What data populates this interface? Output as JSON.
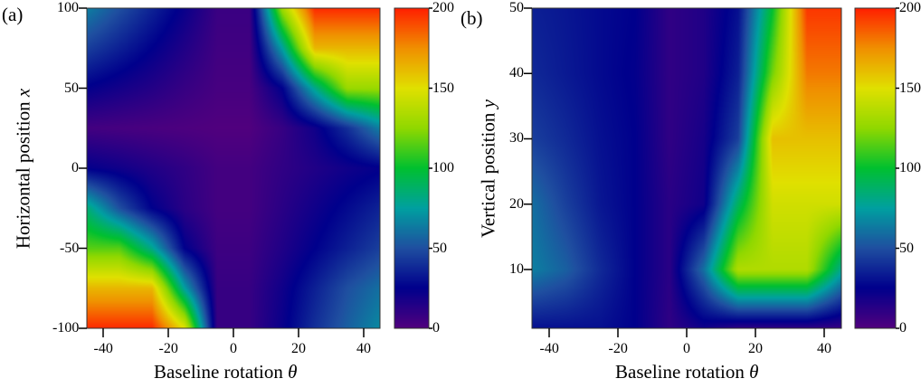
{
  "chart_data": [
    {
      "type": "heatmap",
      "panel_label": "(a)",
      "xlabel": "Baseline rotation",
      "xlabel_symbol": "θ",
      "ylabel": "Horizontal position",
      "ylabel_symbol": "x",
      "xlim": [
        -45,
        45
      ],
      "ylim": [
        -100,
        100
      ],
      "xticks": [
        -40,
        -20,
        0,
        20,
        40
      ],
      "yticks": [
        100,
        50,
        0,
        -50,
        -100
      ],
      "colorbar": {
        "range": [
          0,
          200
        ],
        "ticks": [
          200,
          150,
          100,
          50,
          0
        ]
      },
      "grid_x": [
        -45,
        -35,
        -25,
        -15,
        -5,
        5,
        15,
        25,
        35,
        45
      ],
      "grid_y": [
        100,
        75,
        50,
        25,
        0,
        -25,
        -50,
        -75,
        -100
      ],
      "z": [
        [
          65,
          50,
          36,
          22,
          7,
          7,
          130,
          198,
          198,
          198
        ],
        [
          45,
          35,
          25,
          15,
          5,
          5,
          75,
          163,
          163,
          163
        ],
        [
          24,
          19,
          14,
          8,
          3,
          3,
          25,
          80,
          128,
          128
        ],
        [
          4,
          3,
          2,
          1,
          0,
          0,
          8,
          20,
          40,
          65
        ],
        [
          24,
          20,
          15,
          10,
          4,
          4,
          10,
          15,
          20,
          24
        ],
        [
          85,
          50,
          25,
          12,
          4,
          4,
          12,
          20,
          28,
          36
        ],
        [
          115,
          115,
          80,
          25,
          6,
          6,
          15,
          25,
          35,
          45
        ],
        [
          163,
          163,
          163,
          75,
          8,
          8,
          20,
          35,
          50,
          60
        ],
        [
          198,
          198,
          198,
          150,
          8,
          8,
          22,
          40,
          55,
          68
        ]
      ]
    },
    {
      "type": "heatmap",
      "panel_label": "(b)",
      "xlabel": "Baseline rotation",
      "xlabel_symbol": "θ",
      "ylabel": "Vertical position",
      "ylabel_symbol": "y",
      "xlim": [
        -45,
        45
      ],
      "ylim": [
        1,
        50
      ],
      "xticks": [
        -40,
        -20,
        0,
        20,
        40
      ],
      "yticks": [
        50,
        40,
        30,
        20,
        10
      ],
      "colorbar": {
        "range": [
          0,
          200
        ],
        "ticks": [
          200,
          150,
          100,
          50,
          0
        ]
      },
      "grid_x": [
        -45,
        -35,
        -25,
        -15,
        -5,
        5,
        15,
        25,
        35,
        45
      ],
      "grid_y": [
        50,
        40,
        30,
        20,
        10,
        1
      ],
      "z": [
        [
          35,
          32,
          28,
          25,
          10,
          15,
          30,
          100,
          195,
          195
        ],
        [
          38,
          33,
          28,
          24,
          10,
          15,
          35,
          120,
          180,
          180
        ],
        [
          45,
          38,
          30,
          25,
          10,
          18,
          45,
          160,
          160,
          160
        ],
        [
          60,
          45,
          32,
          25,
          12,
          20,
          90,
          145,
          145,
          145
        ],
        [
          65,
          55,
          38,
          25,
          12,
          60,
          135,
          135,
          135,
          80
        ],
        [
          30,
          30,
          30,
          25,
          10,
          20,
          10,
          10,
          10,
          8
        ]
      ]
    }
  ],
  "colormap": [
    "#50007e",
    "#00008c",
    "#1f4fa0",
    "#00a0a0",
    "#00c030",
    "#90d800",
    "#e0e000",
    "#f09000",
    "#ff2000"
  ]
}
